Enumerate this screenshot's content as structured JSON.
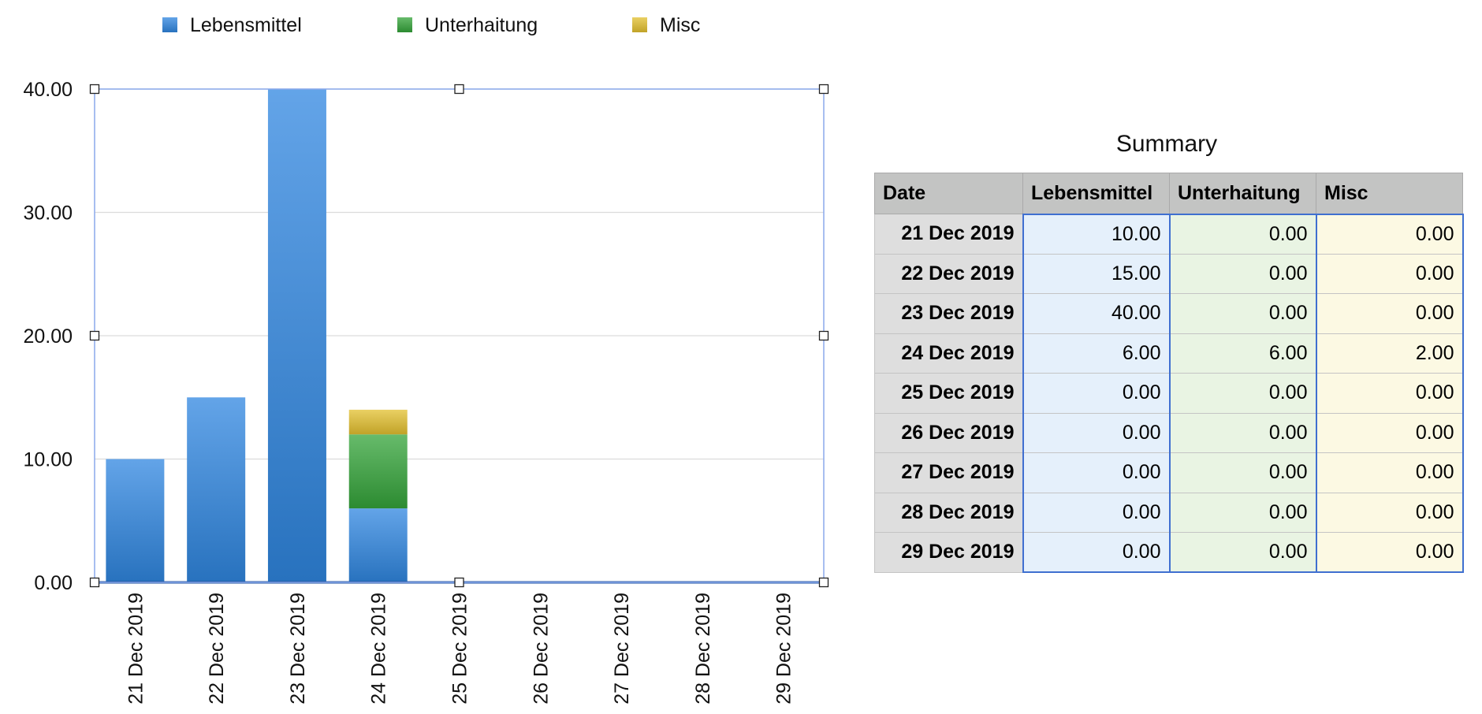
{
  "chart_data": {
    "type": "bar",
    "stacked": true,
    "categories": [
      "21 Dec 2019",
      "22 Dec 2019",
      "23 Dec 2019",
      "24 Dec 2019",
      "25 Dec 2019",
      "26 Dec 2019",
      "27 Dec 2019",
      "28 Dec 2019",
      "29 Dec 2019"
    ],
    "series": [
      {
        "name": "Lebensmittel",
        "color": "#2f86e0",
        "values": [
          10,
          15,
          40,
          6,
          0,
          0,
          0,
          0,
          0
        ]
      },
      {
        "name": "Unterhaitung",
        "color": "#34a43a",
        "values": [
          0,
          0,
          0,
          6,
          0,
          0,
          0,
          0,
          0
        ]
      },
      {
        "name": "Misc",
        "color": "#e3c02f",
        "values": [
          0,
          0,
          0,
          2,
          0,
          0,
          0,
          0,
          0
        ]
      }
    ],
    "ylim": [
      0,
      40
    ],
    "yticks": [
      "0.00",
      "10.00",
      "20.00",
      "30.00",
      "40.00"
    ],
    "grid": true,
    "legend_position": "top-left",
    "selected": true
  },
  "summary": {
    "title": "Summary",
    "columns": [
      "Date",
      "Lebensmittel",
      "Unterhaitung",
      "Misc"
    ],
    "rows": [
      [
        "21 Dec 2019",
        "10.00",
        "0.00",
        "0.00"
      ],
      [
        "22 Dec 2019",
        "15.00",
        "0.00",
        "0.00"
      ],
      [
        "23 Dec 2019",
        "40.00",
        "0.00",
        "0.00"
      ],
      [
        "24 Dec 2019",
        "6.00",
        "6.00",
        "2.00"
      ],
      [
        "25 Dec 2019",
        "0.00",
        "0.00",
        "0.00"
      ],
      [
        "26 Dec 2019",
        "0.00",
        "0.00",
        "0.00"
      ],
      [
        "27 Dec 2019",
        "0.00",
        "0.00",
        "0.00"
      ],
      [
        "28 Dec 2019",
        "0.00",
        "0.00",
        "0.00"
      ],
      [
        "29 Dec 2019",
        "0.00",
        "0.00",
        "0.00"
      ]
    ]
  }
}
